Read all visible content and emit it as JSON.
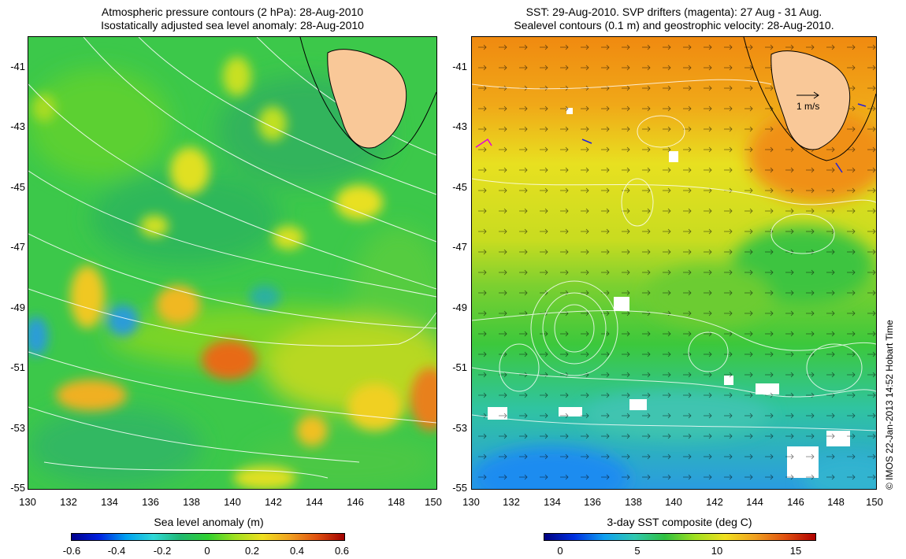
{
  "left_panel": {
    "title_line1": "Atmospheric pressure contours (2 hPa): 28-Aug-2010",
    "title_line2": "Isostatically adjusted sea level anomaly: 28-Aug-2010",
    "colorbar_label": "Sea level anomaly (m)",
    "colorbar_ticks": [
      "-0.6",
      "-0.4",
      "-0.2",
      "0",
      "0.2",
      "0.4",
      "0.6"
    ]
  },
  "right_panel": {
    "title_line1": "SST: 29-Aug-2010. SVP drifters (magenta): 27 Aug - 31 Aug.",
    "title_line2": "Sealevel contours (0.1 m) and geostrophic velocity: 28-Aug-2010.",
    "colorbar_label": "3-day SST composite (deg C)",
    "colorbar_ticks": [
      "0",
      "5",
      "10",
      "15"
    ],
    "velocity_scale_label": "1 m/s"
  },
  "axes": {
    "y_ticks": [
      "-41",
      "-43",
      "-45",
      "-47",
      "-49",
      "-51",
      "-53",
      "-55"
    ],
    "x_ticks": [
      "130",
      "132",
      "134",
      "136",
      "138",
      "140",
      "142",
      "144",
      "146",
      "148",
      "150"
    ]
  },
  "credit": "© IMOS 22-Jan-2013 14:52 Hobart Time",
  "colors": {
    "land": "#f9c898",
    "sla_low": "#2a9bd8",
    "sla_mid": "#2fc83a",
    "sla_high": "#e85a10",
    "sst_cold": "#1c8cf0",
    "sst_mid": "#3cc83c",
    "sst_warm": "#f08a10"
  }
}
